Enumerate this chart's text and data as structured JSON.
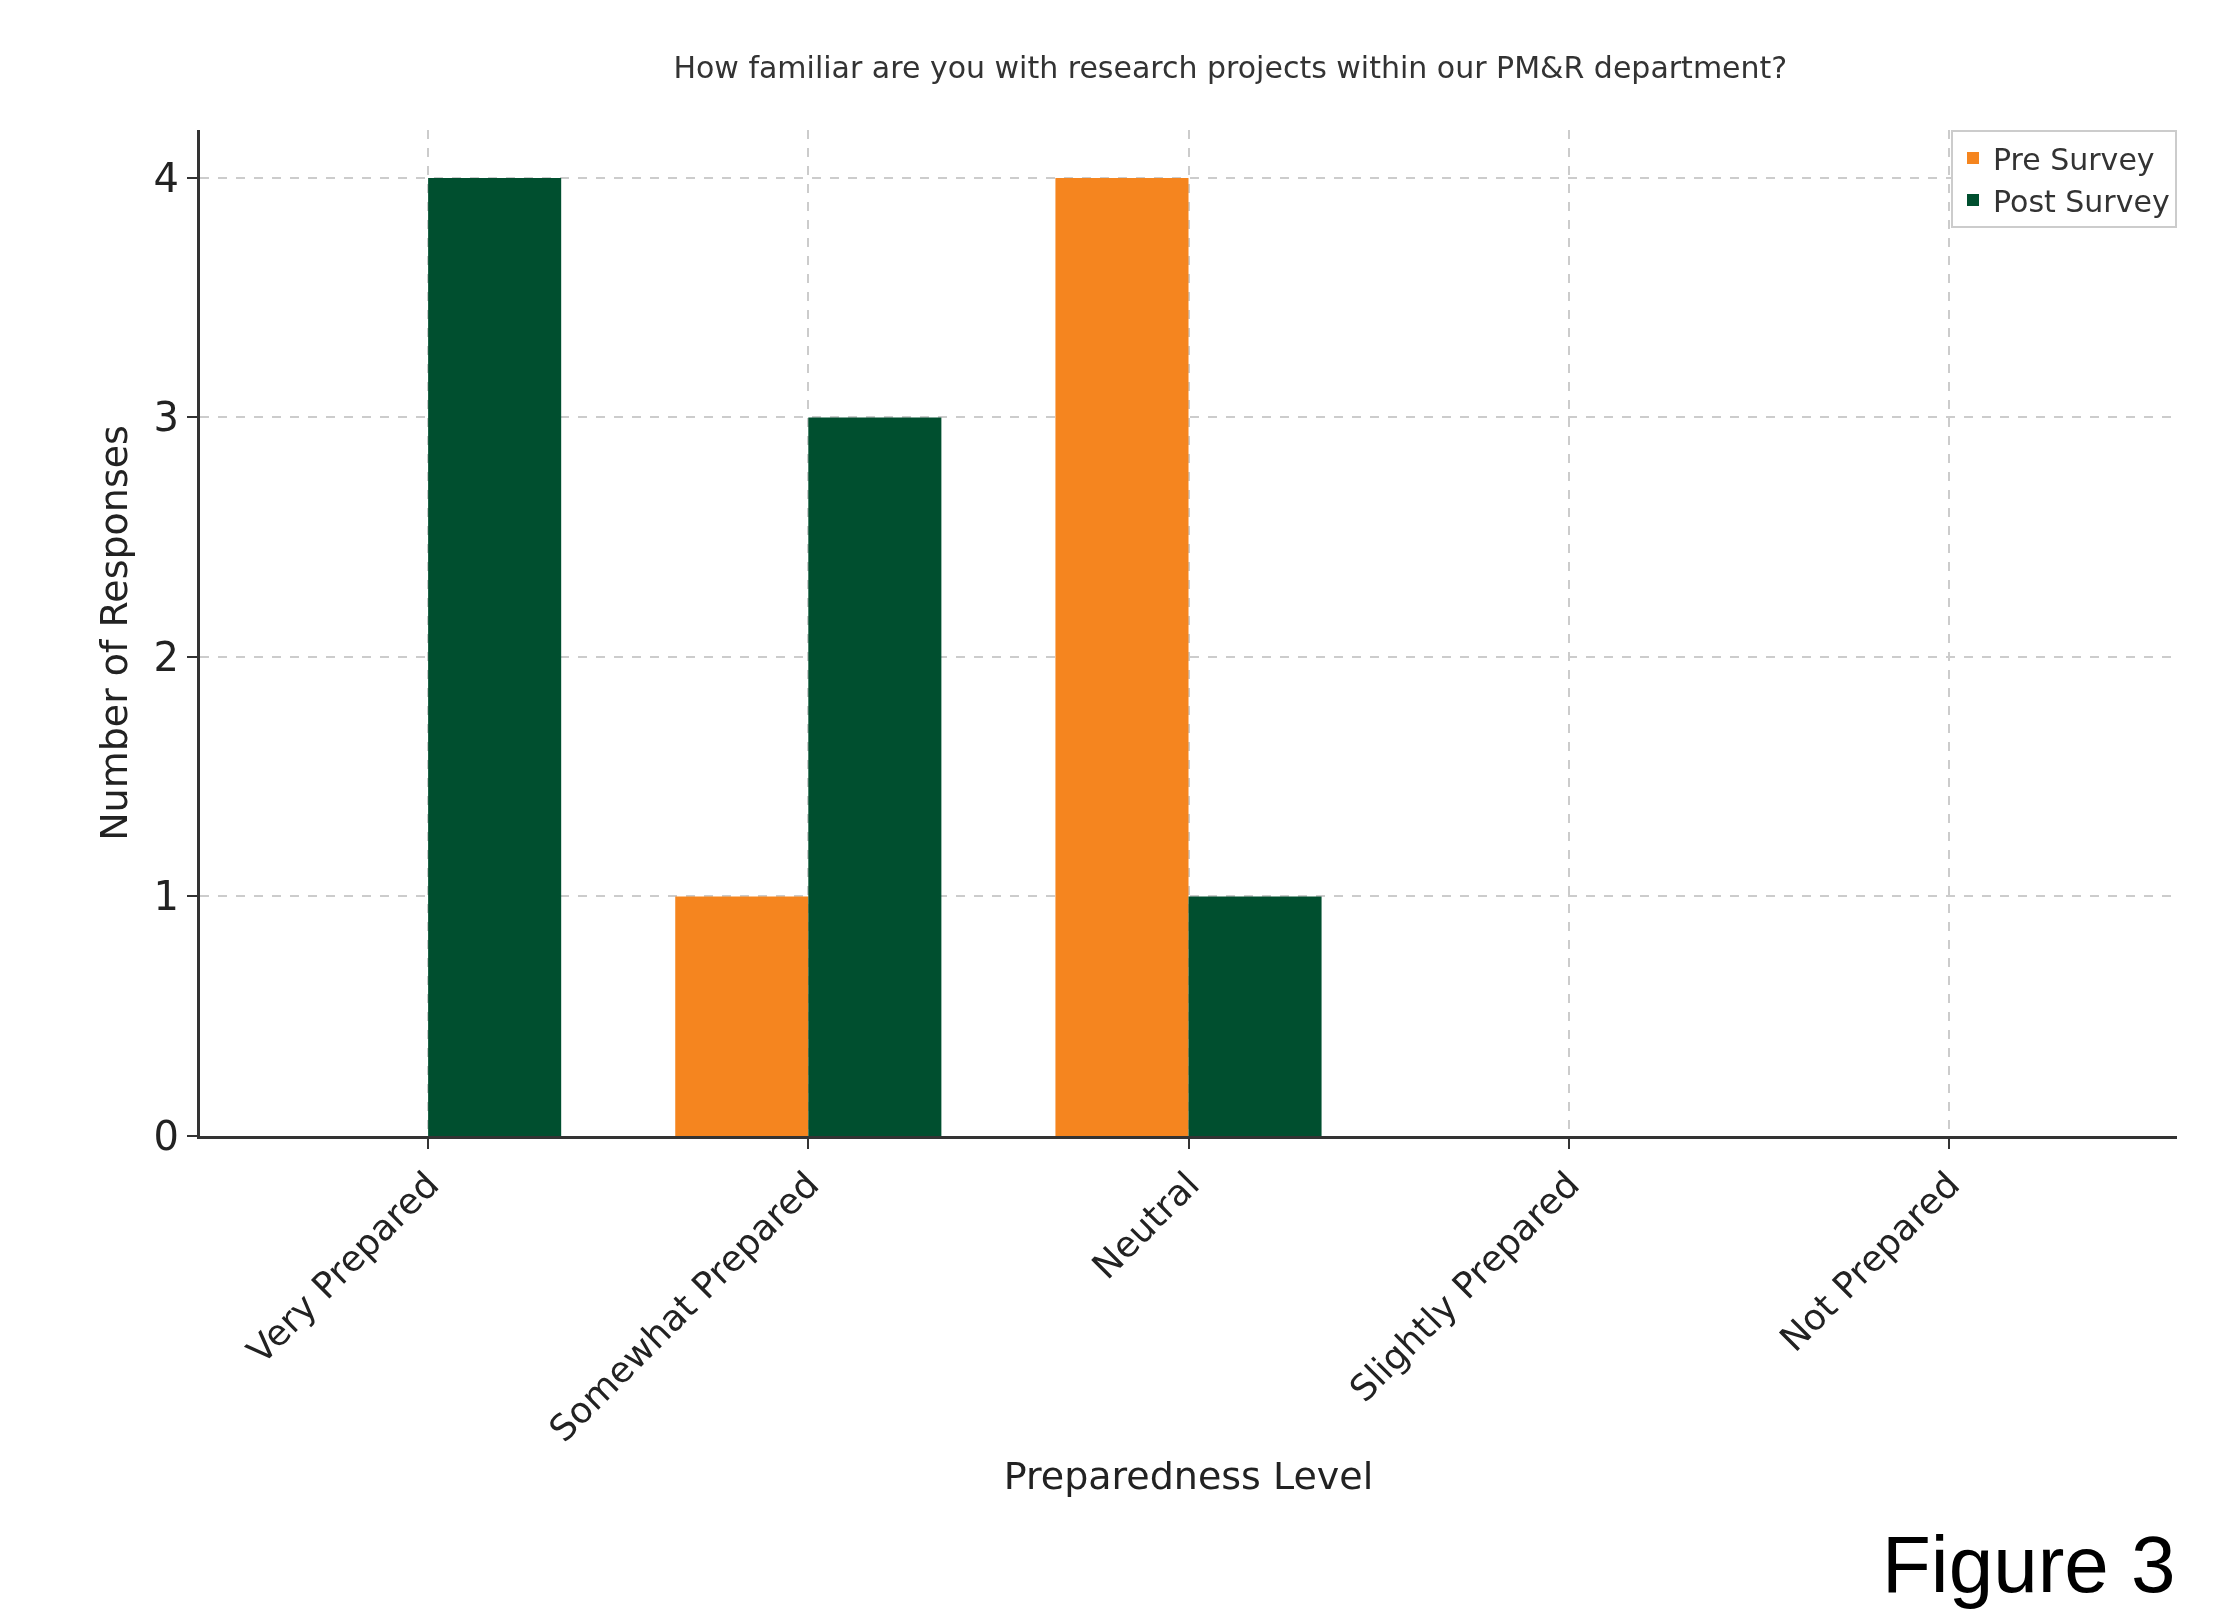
{
  "chart_data": {
    "type": "bar",
    "title": "How familiar are you with research projects within our PM&R department?",
    "xlabel": "Preparedness Level",
    "ylabel": "Number of Responses",
    "categories": [
      "Very Prepared",
      "Somewhat Prepared",
      "Neutral",
      "Slightly Prepared",
      "Not Prepared"
    ],
    "series": [
      {
        "name": "Pre Survey",
        "color": "#f5851f",
        "values": [
          0,
          1,
          4,
          0,
          0
        ]
      },
      {
        "name": "Post Survey",
        "color": "#004f2f",
        "values": [
          4,
          3,
          1,
          0,
          0
        ]
      }
    ],
    "ylim": [
      0,
      4.2
    ],
    "yticks": [
      0,
      1,
      2,
      3,
      4
    ],
    "grid": true,
    "legend": "top right",
    "annotations": [
      "Figure 3"
    ]
  }
}
